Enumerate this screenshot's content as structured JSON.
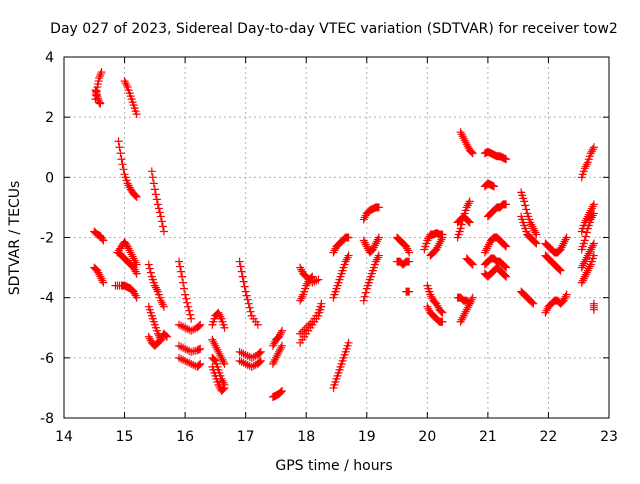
{
  "chart_data": {
    "type": "scatter",
    "title": "Day 027 of 2023, Sidereal Day-to-day VTEC variation (SDTVAR) for receiver tow2",
    "xlabel": "GPS time / hours",
    "ylabel": "SDTVAR / TECUs",
    "xlim": [
      14,
      23
    ],
    "ylim": [
      -8,
      4
    ],
    "xticks": [
      14,
      15,
      16,
      17,
      18,
      19,
      20,
      21,
      22,
      23
    ],
    "yticks": [
      -8,
      -6,
      -4,
      -2,
      0,
      2,
      4
    ],
    "grid": true,
    "marker": "+",
    "marker_color": "#ff0000",
    "segments": [
      {
        "x": [
          14.52,
          14.55,
          14.58,
          14.62
        ],
        "y": [
          2.6,
          3.0,
          3.3,
          3.5
        ]
      },
      {
        "x": [
          14.52,
          14.55,
          14.58,
          14.6
        ],
        "y": [
          2.9,
          2.7,
          2.5,
          2.45
        ]
      },
      {
        "x": [
          14.5,
          14.55,
          14.6,
          14.65
        ],
        "y": [
          -1.8,
          -1.9,
          -1.95,
          -2.1
        ]
      },
      {
        "x": [
          14.5,
          14.55,
          14.6,
          14.65
        ],
        "y": [
          -3.0,
          -3.1,
          -3.3,
          -3.5
        ]
      },
      {
        "x": [
          15.0,
          15.05,
          15.1,
          15.15,
          15.2
        ],
        "y": [
          3.2,
          3.0,
          2.7,
          2.4,
          2.1
        ]
      },
      {
        "x": [
          14.9,
          14.95,
          15.0,
          15.05,
          15.1,
          15.15,
          15.2
        ],
        "y": [
          1.2,
          0.6,
          0.1,
          -0.2,
          -0.4,
          -0.55,
          -0.65
        ]
      },
      {
        "x": [
          14.88,
          14.95,
          15.0,
          15.05,
          15.1,
          15.15,
          15.2
        ],
        "y": [
          -2.5,
          -2.3,
          -2.15,
          -2.3,
          -2.5,
          -2.7,
          -2.9
        ]
      },
      {
        "x": [
          14.9,
          14.95,
          15.0,
          15.05,
          15.1,
          15.15,
          15.2
        ],
        "y": [
          -2.5,
          -2.6,
          -2.7,
          -2.8,
          -2.9,
          -3.0,
          -3.2
        ]
      },
      {
        "x": [
          14.85,
          14.95,
          15.0,
          15.05,
          15.1,
          15.15,
          15.2
        ],
        "y": [
          -3.6,
          -3.6,
          -3.6,
          -3.65,
          -3.7,
          -3.8,
          -4.0
        ]
      },
      {
        "x": [
          15.45,
          15.5,
          15.55,
          15.6,
          15.65
        ],
        "y": [
          0.2,
          -0.4,
          -0.9,
          -1.3,
          -1.8
        ]
      },
      {
        "x": [
          15.4,
          15.45,
          15.5,
          15.55,
          15.6,
          15.65
        ],
        "y": [
          -2.9,
          -3.3,
          -3.6,
          -3.8,
          -4.1,
          -4.3
        ]
      },
      {
        "x": [
          15.4,
          15.45,
          15.5,
          15.55,
          15.6,
          15.65,
          15.7
        ],
        "y": [
          -4.3,
          -4.6,
          -4.9,
          -5.2,
          -5.4,
          -5.2,
          -5.3
        ]
      },
      {
        "x": [
          15.4,
          15.45,
          15.5,
          15.55,
          15.6,
          15.65
        ],
        "y": [
          -5.3,
          -5.5,
          -5.6,
          -5.5,
          -5.4,
          -5.2
        ]
      },
      {
        "x": [
          15.9,
          15.95,
          16.0,
          16.05,
          16.1
        ],
        "y": [
          -2.8,
          -3.3,
          -3.9,
          -4.3,
          -4.7
        ]
      },
      {
        "x": [
          15.9,
          16.0,
          16.1,
          16.2,
          16.25
        ],
        "y": [
          -4.9,
          -5.0,
          -5.1,
          -5.0,
          -4.9
        ]
      },
      {
        "x": [
          15.9,
          16.0,
          16.1,
          16.2,
          16.25
        ],
        "y": [
          -5.6,
          -5.7,
          -5.8,
          -5.75,
          -5.7
        ]
      },
      {
        "x": [
          15.9,
          16.0,
          16.1,
          16.2,
          16.25
        ],
        "y": [
          -6.0,
          -6.1,
          -6.2,
          -6.3,
          -6.2
        ]
      },
      {
        "x": [
          16.45,
          16.5,
          16.55,
          16.6,
          16.65
        ],
        "y": [
          -4.9,
          -4.6,
          -4.5,
          -4.7,
          -5.0
        ]
      },
      {
        "x": [
          16.45,
          16.5,
          16.55,
          16.6,
          16.65
        ],
        "y": [
          -5.4,
          -5.6,
          -5.8,
          -6.0,
          -6.2
        ]
      },
      {
        "x": [
          16.45,
          16.5,
          16.55,
          16.6,
          16.65
        ],
        "y": [
          -6.3,
          -6.6,
          -6.9,
          -7.1,
          -7.0
        ]
      },
      {
        "x": [
          16.45,
          16.5,
          16.55,
          16.6,
          16.65
        ],
        "y": [
          -6.0,
          -6.1,
          -6.4,
          -6.7,
          -6.9
        ]
      },
      {
        "x": [
          16.9,
          16.95,
          17.0,
          17.05,
          17.1,
          17.2
        ],
        "y": [
          -2.8,
          -3.3,
          -3.8,
          -4.2,
          -4.6,
          -4.9
        ]
      },
      {
        "x": [
          16.9,
          17.0,
          17.1,
          17.2,
          17.25
        ],
        "y": [
          -5.8,
          -5.9,
          -6.0,
          -5.9,
          -5.8
        ]
      },
      {
        "x": [
          16.9,
          17.0,
          17.1,
          17.2,
          17.25
        ],
        "y": [
          -6.1,
          -6.2,
          -6.3,
          -6.2,
          -6.1
        ]
      },
      {
        "x": [
          17.45,
          17.5,
          17.55,
          17.6
        ],
        "y": [
          -7.3,
          -7.25,
          -7.2,
          -7.1
        ]
      },
      {
        "x": [
          17.45,
          17.5,
          17.55,
          17.6
        ],
        "y": [
          -5.6,
          -5.4,
          -5.3,
          -5.1
        ]
      },
      {
        "x": [
          17.45,
          17.5,
          17.55,
          17.6
        ],
        "y": [
          -6.2,
          -6.0,
          -5.8,
          -5.6
        ]
      },
      {
        "x": [
          17.9,
          17.95,
          18.0,
          18.1,
          18.2
        ],
        "y": [
          -3.0,
          -3.2,
          -3.3,
          -3.5,
          -3.4
        ]
      },
      {
        "x": [
          17.9,
          17.95,
          18.0,
          18.05,
          18.1
        ],
        "y": [
          -4.1,
          -3.9,
          -3.6,
          -3.4,
          -3.3
        ]
      },
      {
        "x": [
          17.9,
          18.0,
          18.1,
          18.2,
          18.25
        ],
        "y": [
          -5.5,
          -5.2,
          -4.9,
          -4.6,
          -4.3
        ]
      },
      {
        "x": [
          17.9,
          18.0,
          18.1,
          18.2,
          18.25
        ],
        "y": [
          -5.2,
          -5.0,
          -4.8,
          -4.5,
          -4.2
        ]
      },
      {
        "x": [
          18.45,
          18.5,
          18.55,
          18.6,
          18.65,
          18.7
        ],
        "y": [
          -7.0,
          -6.7,
          -6.4,
          -6.1,
          -5.8,
          -5.5
        ]
      },
      {
        "x": [
          18.45,
          18.5,
          18.55,
          18.6,
          18.65,
          18.7
        ],
        "y": [
          -4.0,
          -3.7,
          -3.4,
          -3.1,
          -2.8,
          -2.6
        ]
      },
      {
        "x": [
          18.45,
          18.5,
          18.55,
          18.6,
          18.65,
          18.7
        ],
        "y": [
          -2.5,
          -2.3,
          -2.2,
          -2.1,
          -2.0,
          -2.0
        ]
      },
      {
        "x": [
          18.95,
          19.0,
          19.05,
          19.1,
          19.15,
          19.2
        ],
        "y": [
          -4.1,
          -3.7,
          -3.4,
          -3.1,
          -2.8,
          -2.6
        ]
      },
      {
        "x": [
          18.95,
          19.0,
          19.05,
          19.1,
          19.15,
          19.2
        ],
        "y": [
          -2.1,
          -2.3,
          -2.5,
          -2.4,
          -2.2,
          -2.0
        ]
      },
      {
        "x": [
          18.95,
          19.0,
          19.05,
          19.1,
          19.15,
          19.2
        ],
        "y": [
          -1.4,
          -1.2,
          -1.1,
          -1.05,
          -1.0,
          -1.0
        ]
      },
      {
        "x": [
          19.5,
          19.55,
          19.6,
          19.65,
          19.7
        ],
        "y": [
          -2.0,
          -2.1,
          -2.2,
          -2.3,
          -2.5
        ]
      },
      {
        "x": [
          19.5,
          19.55,
          19.6,
          19.65,
          19.7
        ],
        "y": [
          -2.8,
          -2.8,
          -2.9,
          -2.8,
          -2.8
        ]
      },
      {
        "x": [
          19.65,
          19.7
        ],
        "y": [
          -3.8,
          -3.8
        ]
      },
      {
        "x": [
          19.95,
          20.0,
          20.05,
          20.1,
          20.15,
          20.2,
          20.25
        ],
        "y": [
          -2.4,
          -2.1,
          -1.9,
          -1.9,
          -1.85,
          -1.9,
          -1.9
        ]
      },
      {
        "x": [
          20.0,
          20.05,
          20.1,
          20.15,
          20.2,
          20.25
        ],
        "y": [
          -3.6,
          -3.9,
          -4.1,
          -4.2,
          -4.4,
          -4.5
        ]
      },
      {
        "x": [
          20.0,
          20.05,
          20.1,
          20.15,
          20.2,
          20.25
        ],
        "y": [
          -4.3,
          -4.5,
          -4.6,
          -4.7,
          -4.8,
          -4.8
        ]
      },
      {
        "x": [
          20.05,
          20.1,
          20.15,
          20.2,
          20.25
        ],
        "y": [
          -2.6,
          -2.5,
          -2.4,
          -2.2,
          -2.0
        ]
      },
      {
        "x": [
          20.55,
          20.6,
          20.65,
          20.7,
          20.75
        ],
        "y": [
          1.5,
          1.3,
          1.1,
          0.9,
          0.8
        ]
      },
      {
        "x": [
          20.5,
          20.55,
          20.6,
          20.65,
          20.7
        ],
        "y": [
          -2.0,
          -1.7,
          -1.3,
          -1.0,
          -0.8
        ]
      },
      {
        "x": [
          20.5,
          20.55,
          20.6,
          20.65,
          20.7
        ],
        "y": [
          -1.5,
          -1.4,
          -1.3,
          -1.4,
          -1.5
        ]
      },
      {
        "x": [
          20.55,
          20.6,
          20.65,
          20.7,
          20.75
        ],
        "y": [
          -4.8,
          -4.6,
          -4.4,
          -4.2,
          -4.0
        ]
      },
      {
        "x": [
          20.5,
          20.55,
          20.6,
          20.65,
          20.7
        ],
        "y": [
          -4.0,
          -4.0,
          -4.1,
          -4.1,
          -4.2
        ]
      },
      {
        "x": [
          20.65,
          20.7,
          20.75
        ],
        "y": [
          -2.7,
          -2.8,
          -2.9
        ]
      },
      {
        "x": [
          20.95,
          21.0,
          21.05,
          21.1,
          21.15,
          21.2,
          21.25,
          21.3
        ],
        "y": [
          0.8,
          0.85,
          0.8,
          0.75,
          0.7,
          0.7,
          0.65,
          0.6
        ]
      },
      {
        "x": [
          20.95,
          21.0,
          21.05,
          21.1
        ],
        "y": [
          -0.3,
          -0.2,
          -0.25,
          -0.3
        ]
      },
      {
        "x": [
          21.0,
          21.05,
          21.1,
          21.15,
          21.2,
          21.25,
          21.3
        ],
        "y": [
          -1.3,
          -1.2,
          -1.1,
          -1.0,
          -1.0,
          -0.9,
          -0.9
        ]
      },
      {
        "x": [
          20.95,
          21.0,
          21.05,
          21.1,
          21.15,
          21.2,
          21.25,
          21.3
        ],
        "y": [
          -2.5,
          -2.3,
          -2.1,
          -2.0,
          -2.0,
          -2.1,
          -2.2,
          -2.3
        ]
      },
      {
        "x": [
          20.95,
          21.0,
          21.05,
          21.1,
          21.15,
          21.2,
          21.25,
          21.3
        ],
        "y": [
          -2.9,
          -2.8,
          -2.7,
          -2.7,
          -2.8,
          -2.8,
          -2.9,
          -3.0
        ]
      },
      {
        "x": [
          20.95,
          21.0,
          21.05,
          21.1,
          21.15,
          21.2,
          21.25,
          21.3
        ],
        "y": [
          -3.2,
          -3.3,
          -3.2,
          -3.1,
          -3.0,
          -3.1,
          -3.2,
          -3.3
        ]
      },
      {
        "x": [
          21.55,
          21.6,
          21.65,
          21.7,
          21.75,
          21.8
        ],
        "y": [
          -0.5,
          -0.8,
          -1.2,
          -1.5,
          -1.7,
          -1.9
        ]
      },
      {
        "x": [
          21.55,
          21.6,
          21.65,
          21.7,
          21.75,
          21.8
        ],
        "y": [
          -1.3,
          -1.6,
          -1.9,
          -2.0,
          -2.1,
          -2.2
        ]
      },
      {
        "x": [
          21.55,
          21.6,
          21.65,
          21.7,
          21.75
        ],
        "y": [
          -3.8,
          -3.9,
          -4.0,
          -4.1,
          -4.2
        ]
      },
      {
        "x": [
          21.95,
          22.0,
          22.05,
          22.1,
          22.15,
          22.2
        ],
        "y": [
          -2.2,
          -2.3,
          -2.4,
          -2.5,
          -2.5,
          -2.4
        ]
      },
      {
        "x": [
          21.95,
          22.0,
          22.05,
          22.1,
          22.15,
          22.2
        ],
        "y": [
          -2.6,
          -2.7,
          -2.8,
          -2.9,
          -3.0,
          -3.1
        ]
      },
      {
        "x": [
          21.95,
          22.0,
          22.05,
          22.1,
          22.15,
          22.2,
          22.25,
          22.3
        ],
        "y": [
          -4.5,
          -4.3,
          -4.2,
          -4.1,
          -4.1,
          -4.2,
          -4.1,
          -3.9
        ]
      },
      {
        "x": [
          22.2,
          22.25,
          22.3
        ],
        "y": [
          -2.4,
          -2.2,
          -2.0
        ]
      },
      {
        "x": [
          22.55,
          22.6,
          22.65,
          22.7,
          22.75
        ],
        "y": [
          0.0,
          0.3,
          0.5,
          0.8,
          1.0
        ]
      },
      {
        "x": [
          22.55,
          22.6,
          22.65,
          22.7,
          22.75
        ],
        "y": [
          -1.8,
          -1.5,
          -1.3,
          -1.1,
          -0.9
        ]
      },
      {
        "x": [
          22.55,
          22.6,
          22.65,
          22.7,
          22.75
        ],
        "y": [
          -2.4,
          -2.1,
          -1.7,
          -1.4,
          -1.2
        ]
      },
      {
        "x": [
          22.55,
          22.6,
          22.65,
          22.7,
          22.75
        ],
        "y": [
          -3.0,
          -2.8,
          -2.6,
          -2.4,
          -2.2
        ]
      },
      {
        "x": [
          22.55,
          22.6,
          22.65,
          22.7,
          22.75
        ],
        "y": [
          -3.5,
          -3.3,
          -3.1,
          -2.9,
          -2.6
        ]
      },
      {
        "x": [
          22.75,
          22.75
        ],
        "y": [
          -4.2,
          -4.4
        ]
      }
    ]
  }
}
